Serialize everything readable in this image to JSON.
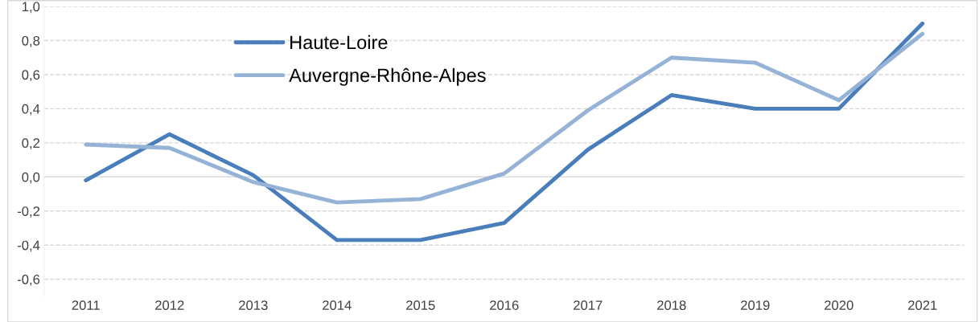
{
  "chart_data": {
    "type": "line",
    "categories": [
      "2011",
      "2012",
      "2013",
      "2014",
      "2015",
      "2016",
      "2017",
      "2018",
      "2019",
      "2020",
      "2021"
    ],
    "series": [
      {
        "name": "Haute-Loire",
        "color": "#4a7ebb",
        "values": [
          -0.02,
          0.25,
          0.01,
          -0.37,
          -0.37,
          -0.27,
          0.16,
          0.48,
          0.4,
          0.4,
          0.9
        ]
      },
      {
        "name": "Auvergne-Rhône-Alpes",
        "color": "#95b3d7",
        "values": [
          0.19,
          0.17,
          -0.03,
          -0.15,
          -0.13,
          0.02,
          0.39,
          0.7,
          0.67,
          0.45,
          0.84
        ]
      }
    ],
    "ylim": [
      -0.7,
      1.0
    ],
    "yticks": [
      {
        "value": -0.6,
        "label": "-0,6"
      },
      {
        "value": -0.4,
        "label": "-0,4"
      },
      {
        "value": -0.2,
        "label": "-0,2"
      },
      {
        "value": 0.0,
        "label": "0,0"
      },
      {
        "value": 0.2,
        "label": "0,2"
      },
      {
        "value": 0.4,
        "label": "0,4"
      },
      {
        "value": 0.6,
        "label": "0,6"
      },
      {
        "value": 0.8,
        "label": "0,8"
      },
      {
        "value": 1.0,
        "label": "1,0"
      }
    ],
    "grid": "y",
    "legend": "top left",
    "marker": "none",
    "line_style": "solid"
  }
}
